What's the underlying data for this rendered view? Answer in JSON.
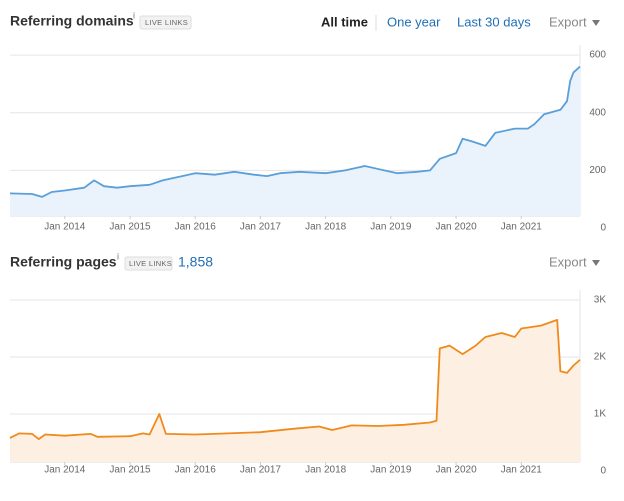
{
  "chart_data": [
    {
      "type": "line",
      "title": "Referring domains",
      "info": "i",
      "badge": "LIVE LINKS",
      "ranges": [
        {
          "label": "All time",
          "active": true
        },
        {
          "label": "One year",
          "active": false
        },
        {
          "label": "Last 30 days",
          "active": false
        }
      ],
      "export": "Export",
      "color": "#5b9fd9",
      "fill_color": "#eaf3fc",
      "grid": true,
      "xlim": [
        2013.16,
        2021.9
      ],
      "ylim": [
        0,
        635
      ],
      "xticks": [
        {
          "value": 2014,
          "label": "Jan 2014"
        },
        {
          "value": 2015,
          "label": "Jan 2015"
        },
        {
          "value": 2016,
          "label": "Jan 2016"
        },
        {
          "value": 2017,
          "label": "Jan 2017"
        },
        {
          "value": 2018,
          "label": "Jan 2018"
        },
        {
          "value": 2019,
          "label": "Jan 2019"
        },
        {
          "value": 2020,
          "label": "Jan 2020"
        },
        {
          "value": 2021,
          "label": "Jan 2021"
        }
      ],
      "yticks": [
        0,
        200,
        400,
        600
      ],
      "x": [
        2013.16,
        2013.5,
        2013.65,
        2013.8,
        2014.0,
        2014.3,
        2014.45,
        2014.6,
        2014.8,
        2015.0,
        2015.3,
        2015.5,
        2015.8,
        2016.0,
        2016.3,
        2016.6,
        2016.9,
        2017.1,
        2017.3,
        2017.6,
        2018.0,
        2018.3,
        2018.6,
        2018.9,
        2019.1,
        2019.4,
        2019.6,
        2019.75,
        2020.0,
        2020.1,
        2020.25,
        2020.45,
        2020.6,
        2020.9,
        2021.1,
        2021.2,
        2021.35,
        2021.6,
        2021.7,
        2021.75,
        2021.8,
        2021.9
      ],
      "values": [
        120,
        118,
        108,
        125,
        130,
        140,
        165,
        145,
        140,
        145,
        150,
        165,
        180,
        190,
        185,
        195,
        185,
        180,
        190,
        195,
        190,
        200,
        215,
        200,
        190,
        195,
        200,
        240,
        260,
        310,
        300,
        285,
        330,
        345,
        345,
        360,
        395,
        410,
        440,
        510,
        540,
        560
      ]
    },
    {
      "type": "line",
      "title": "Referring pages",
      "info": "i",
      "badge": "LIVE LINKS",
      "count": "1,858",
      "export": "Export",
      "color": "#f08a1c",
      "fill_color": "#fdf0e3",
      "grid": true,
      "xlim": [
        2013.16,
        2021.9
      ],
      "ylim": [
        0,
        3175
      ],
      "xticks": [
        {
          "value": 2014,
          "label": "Jan 2014"
        },
        {
          "value": 2015,
          "label": "Jan 2015"
        },
        {
          "value": 2016,
          "label": "Jan 2016"
        },
        {
          "value": 2017,
          "label": "Jan 2017"
        },
        {
          "value": 2018,
          "label": "Jan 2018"
        },
        {
          "value": 2019,
          "label": "Jan 2019"
        },
        {
          "value": 2020,
          "label": "Jan 2020"
        },
        {
          "value": 2021,
          "label": "Jan 2021"
        }
      ],
      "yticks": [
        0,
        {
          "value": 1000,
          "label": "1K"
        },
        {
          "value": 2000,
          "label": "2K"
        },
        {
          "value": 3000,
          "label": "3K"
        }
      ],
      "x": [
        2013.16,
        2013.3,
        2013.5,
        2013.6,
        2013.7,
        2014.0,
        2014.4,
        2014.5,
        2015.0,
        2015.2,
        2015.3,
        2015.45,
        2015.55,
        2016.0,
        2016.5,
        2017.0,
        2017.5,
        2017.9,
        2018.1,
        2018.4,
        2018.8,
        2019.2,
        2019.6,
        2019.7,
        2019.75,
        2019.9,
        2020.1,
        2020.3,
        2020.45,
        2020.7,
        2020.9,
        2021.0,
        2021.3,
        2021.55,
        2021.6,
        2021.7,
        2021.8,
        2021.9
      ],
      "values": [
        580,
        660,
        650,
        560,
        640,
        620,
        650,
        600,
        610,
        660,
        640,
        1000,
        650,
        640,
        660,
        680,
        740,
        780,
        720,
        800,
        790,
        810,
        850,
        880,
        2150,
        2200,
        2050,
        2200,
        2350,
        2420,
        2350,
        2500,
        2550,
        2650,
        1750,
        1720,
        1850,
        1950
      ]
    }
  ]
}
